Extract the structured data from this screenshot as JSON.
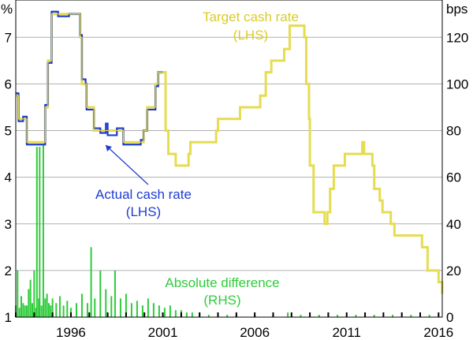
{
  "chart_data": {
    "type": "line",
    "title": "",
    "xlabel": "",
    "left_axis": {
      "unit": "%",
      "ylim": [
        1,
        7.8
      ],
      "ticks": [
        1,
        2,
        3,
        4,
        5,
        6,
        7
      ]
    },
    "right_axis": {
      "unit": "bps",
      "ylim": [
        0,
        136
      ],
      "ticks": [
        0,
        20,
        40,
        60,
        80,
        100,
        120
      ]
    },
    "xlim": [
      1993.0,
      2016.2
    ],
    "x_ticks": [
      {
        "value": 1996,
        "label": "1996"
      },
      {
        "value": 2001,
        "label": "2001"
      },
      {
        "value": 2006,
        "label": "2006"
      },
      {
        "value": 2011,
        "label": "2011"
      },
      {
        "value": 2016,
        "label": "2016"
      }
    ],
    "grid": true,
    "colors": {
      "target": "#e6dc50",
      "actual": "#1e3cd2",
      "difference": "#2ecc3a"
    },
    "annotations": {
      "target_line1": "Target cash rate",
      "target_line2": "(LHS)",
      "actual_line1": "Actual cash rate",
      "actual_line2": "(LHS)",
      "diff_line1": "Absolute difference",
      "diff_line2": "(RHS)"
    },
    "series": [
      {
        "name": "Target cash rate",
        "axis": "left",
        "step": true,
        "x": [
          1993.0,
          1993.15,
          1993.6,
          1994.1,
          1994.6,
          1994.75,
          1994.95,
          1995.0,
          1995.9,
          1996.5,
          1996.6,
          1996.85,
          1997.25,
          1997.6,
          1998.85,
          1999.8,
          1999.95,
          2000.15,
          2000.6,
          2000.75,
          2001.0,
          2001.15,
          2001.3,
          2001.7,
          2002.4,
          2002.5,
          2003.9,
          2004.0,
          2005.2,
          2006.3,
          2006.6,
          2006.9,
          2007.6,
          2007.9,
          2008.7,
          2008.8,
          2008.95,
          2009.0,
          2009.2,
          2009.8,
          2009.95,
          2010.1,
          2010.3,
          2010.9,
          2011.85,
          2011.95,
          2012.4,
          2012.5,
          2012.8,
          2012.95,
          2013.4,
          2013.6,
          2015.1,
          2015.4,
          2016.0,
          2016.2
        ],
        "y": [
          5.75,
          5.25,
          4.75,
          4.75,
          5.5,
          6.5,
          7.5,
          7.5,
          7.5,
          7.0,
          6.0,
          5.5,
          5.0,
          5.0,
          4.75,
          4.75,
          5.0,
          5.5,
          6.0,
          6.25,
          6.25,
          5.0,
          4.5,
          4.25,
          4.5,
          4.75,
          5.0,
          5.25,
          5.5,
          5.75,
          6.25,
          6.5,
          6.75,
          7.25,
          7.0,
          6.0,
          5.25,
          4.25,
          3.25,
          3.0,
          3.25,
          3.75,
          4.25,
          4.5,
          4.75,
          4.5,
          4.25,
          3.75,
          3.5,
          3.25,
          3.0,
          2.75,
          2.5,
          2.0,
          1.75,
          1.5
        ]
      },
      {
        "name": "Actual cash rate",
        "axis": "left",
        "step": true,
        "x": [
          1993.0,
          1993.15,
          1993.4,
          1993.6,
          1994.1,
          1994.6,
          1994.75,
          1994.95,
          1995.3,
          1995.9,
          1996.5,
          1996.6,
          1996.8,
          1996.85,
          1997.25,
          1997.6,
          1997.9,
          1998.0,
          1998.5,
          1998.85,
          1999.8,
          1999.95,
          2000.15,
          2000.6,
          2000.75,
          2001.0
        ],
        "y": [
          5.8,
          5.2,
          5.3,
          4.7,
          4.7,
          5.55,
          6.45,
          7.55,
          7.45,
          7.5,
          7.05,
          6.1,
          6.0,
          5.45,
          5.05,
          4.95,
          5.15,
          4.9,
          5.05,
          4.7,
          4.8,
          5.0,
          5.45,
          5.95,
          6.25,
          6.25
        ]
      },
      {
        "name": "Absolute difference",
        "axis": "right",
        "type": "bar",
        "x": [
          1993.0,
          1993.1,
          1993.2,
          1993.3,
          1993.4,
          1993.5,
          1993.6,
          1993.7,
          1993.8,
          1993.9,
          1994.0,
          1994.1,
          1994.15,
          1994.25,
          1994.3,
          1994.4,
          1994.5,
          1994.6,
          1994.7,
          1994.8,
          1994.9,
          1995.0,
          1995.2,
          1995.4,
          1995.6,
          1995.8,
          1996.0,
          1996.3,
          1996.6,
          1996.9,
          1997.1,
          1997.3,
          1997.6,
          1997.9,
          1998.2,
          1998.4,
          1998.7,
          1999.0,
          1999.3,
          1999.6,
          1999.9,
          2000.2,
          2000.5,
          2000.8,
          2001.1,
          2001.4,
          2001.7,
          2002.0,
          2002.3,
          2002.6,
          2003.0,
          2003.5,
          2004.0,
          2004.5,
          2005.0,
          2006.0,
          2007.0,
          2007.8,
          2008.5,
          2009.5,
          2010.5,
          2011.5,
          2012.5,
          2013.5,
          2014.5,
          2015.5
        ],
        "y": [
          5,
          20,
          4,
          9,
          6,
          5,
          5,
          12,
          16,
          6,
          20,
          4,
          73,
          8,
          73,
          5,
          74,
          8,
          10,
          6,
          5,
          8,
          6,
          9,
          5,
          7,
          4,
          6,
          10,
          6,
          30,
          8,
          20,
          12,
          9,
          20,
          8,
          10,
          6,
          7,
          5,
          8,
          6,
          5,
          4,
          5,
          3,
          3,
          2,
          2,
          2,
          1,
          1,
          1,
          1,
          1,
          1,
          2,
          1,
          1,
          1,
          1,
          1,
          1,
          1,
          1
        ]
      }
    ]
  }
}
